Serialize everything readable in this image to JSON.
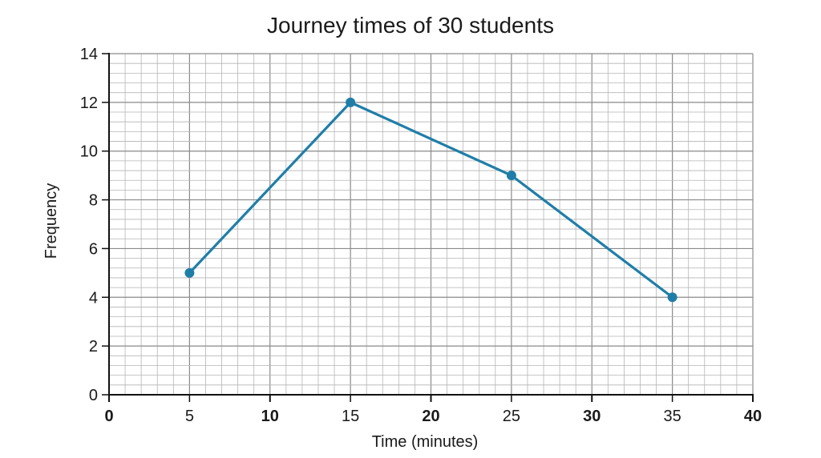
{
  "chart_data": {
    "type": "line",
    "title": "Journey times of 30 students",
    "xlabel": "Time (minutes)",
    "ylabel": "Frequency",
    "xlim": [
      0,
      40
    ],
    "ylim": [
      0,
      14
    ],
    "x_ticks": [
      {
        "value": 0,
        "label": "0",
        "bold": true
      },
      {
        "value": 5,
        "label": "5",
        "bold": false
      },
      {
        "value": 10,
        "label": "10",
        "bold": true
      },
      {
        "value": 15,
        "label": "15",
        "bold": false
      },
      {
        "value": 20,
        "label": "20",
        "bold": true
      },
      {
        "value": 25,
        "label": "25",
        "bold": false
      },
      {
        "value": 30,
        "label": "30",
        "bold": true
      },
      {
        "value": 35,
        "label": "35",
        "bold": false
      },
      {
        "value": 40,
        "label": "40",
        "bold": true
      }
    ],
    "y_ticks": [
      {
        "value": 0,
        "label": "0"
      },
      {
        "value": 2,
        "label": "2"
      },
      {
        "value": 4,
        "label": "4"
      },
      {
        "value": 6,
        "label": "6"
      },
      {
        "value": 8,
        "label": "8"
      },
      {
        "value": 10,
        "label": "10"
      },
      {
        "value": 12,
        "label": "12"
      },
      {
        "value": 14,
        "label": "14"
      }
    ],
    "grid": true,
    "grid_minor_step_x": 1,
    "grid_minor_step_y": 0.4,
    "series": [
      {
        "x": [
          5,
          15,
          25,
          35
        ],
        "y": [
          5,
          12,
          9,
          4
        ],
        "color": "#1f7ea8",
        "markers": true
      }
    ]
  }
}
